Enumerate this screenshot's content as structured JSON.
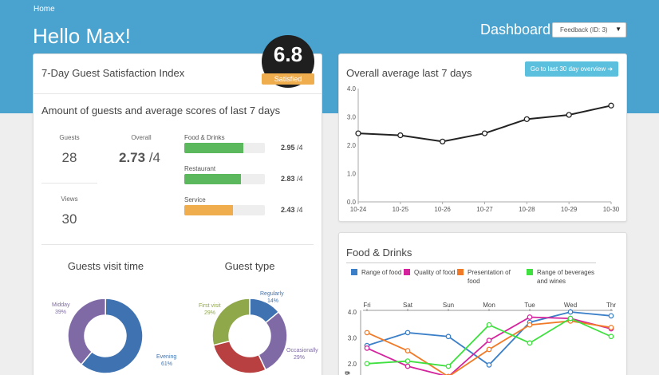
{
  "header": {
    "breadcrumb": "Home",
    "greeting": "Hello Max!",
    "dashboard_title": "Dashboard",
    "feedback_select": "Feedback (ID: 3)"
  },
  "satisfaction": {
    "title": "7-Day Guest Satisfaction Index",
    "score": "6.8",
    "status": "Satisfied",
    "colors": {
      "badge_bg": "#1f1f1f",
      "status_bg": "#f0ad4e"
    }
  },
  "summary": {
    "title": "Amount of guests and average scores of last 7 days",
    "guests_label": "Guests",
    "guests_value": "28",
    "overall_label": "Overall",
    "overall_value": "2.73",
    "overall_max": "/4",
    "views_label": "Views",
    "views_value": "30",
    "categories": [
      {
        "label": "Food & Drinks",
        "score": "2.95",
        "max": "/4",
        "value": 2.95,
        "color": "#5cb85c"
      },
      {
        "label": "Restaurant",
        "score": "2.83",
        "max": "/4",
        "value": 2.83,
        "color": "#5cb85c"
      },
      {
        "label": "Service",
        "score": "2.43",
        "max": "/4",
        "value": 2.43,
        "color": "#f0ad4e"
      }
    ]
  },
  "visit_time": {
    "title": "Guests visit time",
    "slices": [
      {
        "label": "Midday",
        "pct": "39%",
        "value": 39,
        "color": "#7f6aa6"
      },
      {
        "label": "Evening",
        "pct": "61%",
        "value": 61,
        "color": "#3f72b0"
      }
    ]
  },
  "guest_type": {
    "title": "Guest type",
    "slices": [
      {
        "label": "Regularly",
        "pct": "14%",
        "value": 14,
        "color": "#3f72b0"
      },
      {
        "label": "Occasionally",
        "pct": "29%",
        "value": 29,
        "color": "#7f6aa6"
      },
      {
        "label": "",
        "pct": "",
        "value": 28,
        "color": "#b94040"
      },
      {
        "label": "First visit",
        "pct": "29%",
        "value": 29,
        "color": "#8fa84a"
      }
    ]
  },
  "overview": {
    "title": "Overall average last 7 days",
    "button": "Go to last 30 day overview ➔"
  },
  "food_panel": {
    "title": "Food & Drinks"
  },
  "chart_data": [
    {
      "type": "line",
      "title": "Overall average last 7 days",
      "x": [
        "10-24",
        "10-25",
        "10-26",
        "10-27",
        "10-28",
        "10-29",
        "10-30"
      ],
      "series": [
        {
          "values": [
            2.42,
            2.35,
            2.13,
            2.42,
            2.92,
            3.07,
            3.4
          ],
          "color": "#222222"
        }
      ],
      "ylim": [
        0,
        4
      ],
      "yticks": [
        "0.0",
        "1.0",
        "2.0",
        "3.0",
        "4.0"
      ],
      "grid": false
    },
    {
      "type": "line",
      "title": "Food & Drinks",
      "x": [
        "Fri",
        "Sat",
        "Sun",
        "Mon",
        "Tue",
        "Wed",
        "Thr"
      ],
      "ylabel": "Rating",
      "yticks": [
        "4.0",
        "3.0",
        "2.0"
      ],
      "ylim": [
        1.5,
        4.0
      ],
      "legend": "top",
      "series": [
        {
          "name": "Range of food",
          "values": [
            2.7,
            3.2,
            3.05,
            1.95,
            3.6,
            4.0,
            3.85
          ],
          "color": "#3a7fc8"
        },
        {
          "name": "Quality of food",
          "values": [
            2.6,
            1.9,
            1.5,
            2.9,
            3.8,
            3.75,
            3.35
          ],
          "color": "#d4239c"
        },
        {
          "name": "Presentation of food",
          "values": [
            3.2,
            2.5,
            1.5,
            2.55,
            3.5,
            3.65,
            3.4
          ],
          "color": "#f07a28"
        },
        {
          "name": "Range of beverages and wines",
          "values": [
            2.0,
            2.1,
            1.9,
            3.5,
            2.8,
            3.75,
            3.05
          ],
          "color": "#3fe03f"
        }
      ]
    }
  ]
}
